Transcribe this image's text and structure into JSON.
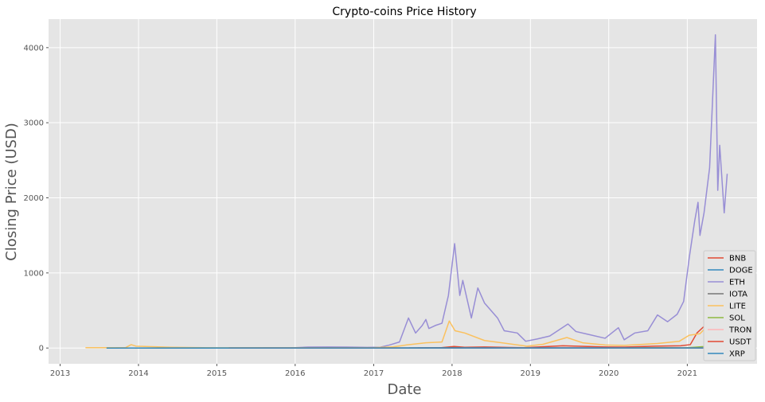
{
  "chart_data": {
    "type": "line",
    "title": "Crypto-coins Price History",
    "xlabel": "Date",
    "ylabel": "Closing Price (USD)",
    "xlim": [
      "2012-11-08",
      "2021-11-22"
    ],
    "ylim": [
      -210,
      4380
    ],
    "x_ticks": [
      "2013",
      "2014",
      "2015",
      "2016",
      "2017",
      "2018",
      "2019",
      "2020",
      "2021"
    ],
    "y_ticks": [
      0,
      1000,
      2000,
      3000,
      4000
    ],
    "grid": true,
    "legend_position": "lower right",
    "colors": {
      "background": "#e5e5e5",
      "grid": "#ffffff"
    },
    "series": [
      {
        "name": "BNB",
        "color": "#e24a33",
        "points": [
          [
            "2017-07-25",
            0.1
          ],
          [
            "2017-11-01",
            2
          ],
          [
            "2018-01-10",
            20
          ],
          [
            "2018-03-01",
            10
          ],
          [
            "2018-06-01",
            14
          ],
          [
            "2018-12-01",
            5
          ],
          [
            "2019-06-01",
            30
          ],
          [
            "2019-12-01",
            15
          ],
          [
            "2020-03-15",
            12
          ],
          [
            "2020-08-01",
            25
          ],
          [
            "2020-12-01",
            30
          ],
          [
            "2021-01-15",
            45
          ],
          [
            "2021-02-15",
            200
          ],
          [
            "2021-04-01",
            320
          ],
          [
            "2021-05-10",
            640
          ],
          [
            "2021-05-25",
            330
          ],
          [
            "2021-07-06",
            320
          ]
        ]
      },
      {
        "name": "DOGE",
        "color": "#348abd",
        "points": [
          [
            "2013-12-15",
            0
          ],
          [
            "2021-07-06",
            0.2
          ]
        ]
      },
      {
        "name": "ETH",
        "color": "#988ed5",
        "points": [
          [
            "2015-08-08",
            2
          ],
          [
            "2015-12-01",
            1
          ],
          [
            "2016-03-01",
            12
          ],
          [
            "2016-06-01",
            14
          ],
          [
            "2016-09-01",
            12
          ],
          [
            "2016-12-01",
            8
          ],
          [
            "2017-02-01",
            11
          ],
          [
            "2017-03-15",
            40
          ],
          [
            "2017-05-01",
            80
          ],
          [
            "2017-06-12",
            400
          ],
          [
            "2017-07-15",
            200
          ],
          [
            "2017-08-15",
            300
          ],
          [
            "2017-09-01",
            380
          ],
          [
            "2017-09-15",
            260
          ],
          [
            "2017-10-15",
            300
          ],
          [
            "2017-11-15",
            330
          ],
          [
            "2017-12-15",
            700
          ],
          [
            "2018-01-13",
            1390
          ],
          [
            "2018-02-06",
            700
          ],
          [
            "2018-02-20",
            900
          ],
          [
            "2018-04-01",
            400
          ],
          [
            "2018-05-01",
            800
          ],
          [
            "2018-06-01",
            600
          ],
          [
            "2018-08-01",
            400
          ],
          [
            "2018-09-01",
            230
          ],
          [
            "2018-11-01",
            200
          ],
          [
            "2018-12-10",
            90
          ],
          [
            "2019-02-01",
            120
          ],
          [
            "2019-04-01",
            160
          ],
          [
            "2019-06-25",
            320
          ],
          [
            "2019-08-01",
            220
          ],
          [
            "2019-10-01",
            180
          ],
          [
            "2019-12-15",
            130
          ],
          [
            "2020-02-15",
            270
          ],
          [
            "2020-03-13",
            110
          ],
          [
            "2020-05-01",
            200
          ],
          [
            "2020-07-01",
            230
          ],
          [
            "2020-08-15",
            440
          ],
          [
            "2020-10-01",
            350
          ],
          [
            "2020-11-15",
            450
          ],
          [
            "2020-12-15",
            620
          ],
          [
            "2021-01-10",
            1200
          ],
          [
            "2021-02-05",
            1700
          ],
          [
            "2021-02-20",
            1940
          ],
          [
            "2021-03-01",
            1500
          ],
          [
            "2021-03-20",
            1800
          ],
          [
            "2021-04-15",
            2400
          ],
          [
            "2021-05-12",
            4170
          ],
          [
            "2021-05-23",
            2100
          ],
          [
            "2021-06-01",
            2700
          ],
          [
            "2021-06-22",
            1800
          ],
          [
            "2021-07-06",
            2320
          ]
        ]
      },
      {
        "name": "IOTA",
        "color": "#777777",
        "points": [
          [
            "2017-06-14",
            0.6
          ],
          [
            "2017-12-19",
            5
          ],
          [
            "2018-06-01",
            1.5
          ],
          [
            "2021-07-06",
            1
          ]
        ]
      },
      {
        "name": "LITE",
        "color": "#fbc15e",
        "points": [
          [
            "2013-04-29",
            4
          ],
          [
            "2013-11-01",
            4
          ],
          [
            "2013-11-28",
            45
          ],
          [
            "2013-12-20",
            25
          ],
          [
            "2014-06-01",
            10
          ],
          [
            "2015-01-01",
            3
          ],
          [
            "2016-01-01",
            3
          ],
          [
            "2017-01-01",
            4
          ],
          [
            "2017-04-01",
            15
          ],
          [
            "2017-06-01",
            40
          ],
          [
            "2017-09-01",
            70
          ],
          [
            "2017-11-15",
            80
          ],
          [
            "2017-12-19",
            360
          ],
          [
            "2018-01-15",
            230
          ],
          [
            "2018-03-01",
            200
          ],
          [
            "2018-06-01",
            100
          ],
          [
            "2018-12-15",
            25
          ],
          [
            "2019-03-01",
            50
          ],
          [
            "2019-06-20",
            140
          ],
          [
            "2019-09-01",
            70
          ],
          [
            "2019-12-15",
            40
          ],
          [
            "2020-03-15",
            35
          ],
          [
            "2020-08-15",
            60
          ],
          [
            "2020-11-25",
            90
          ],
          [
            "2021-01-10",
            170
          ],
          [
            "2021-03-01",
            190
          ],
          [
            "2021-05-10",
            400
          ],
          [
            "2021-05-25",
            180
          ],
          [
            "2021-07-06",
            150
          ]
        ]
      },
      {
        "name": "SOL",
        "color": "#8eba42",
        "points": [
          [
            "2020-04-11",
            1
          ],
          [
            "2020-09-01",
            4
          ],
          [
            "2020-12-15",
            2
          ],
          [
            "2021-02-01",
            10
          ],
          [
            "2021-04-01",
            22
          ],
          [
            "2021-05-15",
            50
          ],
          [
            "2021-07-06",
            35
          ]
        ]
      },
      {
        "name": "TRON",
        "color": "#ffb5b8",
        "points": [
          [
            "2017-09-14",
            0
          ],
          [
            "2021-07-06",
            0.07
          ]
        ]
      },
      {
        "name": "USDT",
        "color": "#e24a33",
        "points": [
          [
            "2015-02-26",
            1
          ],
          [
            "2021-07-06",
            1
          ]
        ]
      },
      {
        "name": "XRP",
        "color": "#348abd",
        "points": [
          [
            "2013-08-05",
            0
          ],
          [
            "2021-07-06",
            1
          ]
        ]
      }
    ]
  }
}
